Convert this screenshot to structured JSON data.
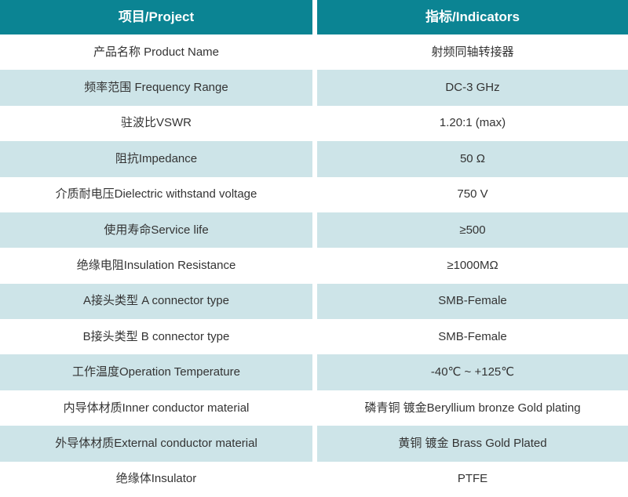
{
  "table": {
    "header": {
      "col1": "项目/Project",
      "col2": "指标/Indicators"
    },
    "rows": [
      {
        "project": "产品名称 Product Name",
        "indicator": "射频同轴转接器"
      },
      {
        "project": "频率范围 Frequency Range",
        "indicator": "DC-3 GHz"
      },
      {
        "project": "驻波比VSWR",
        "indicator": "1.20:1 (max)"
      },
      {
        "project": "阻抗Impedance",
        "indicator": "50 Ω"
      },
      {
        "project": "介质耐电压Dielectric withstand voltage",
        "indicator": "750 V"
      },
      {
        "project": "使用寿命Service life",
        "indicator": "≥500"
      },
      {
        "project": "绝缘电阻Insulation Resistance",
        "indicator": "≥1000MΩ"
      },
      {
        "project": "A接头类型 A connector type",
        "indicator": "SMB-Female"
      },
      {
        "project": "B接头类型 B connector type",
        "indicator": "SMB-Female"
      },
      {
        "project": "工作温度Operation Temperature",
        "indicator": "-40℃ ~ +125℃"
      },
      {
        "project": "内导体材质Inner conductor material",
        "indicator": "磷青铜 镀金Beryllium bronze Gold plating"
      },
      {
        "project": "外导体材质External conductor material",
        "indicator": "黄铜 镀金 Brass Gold Plated"
      },
      {
        "project": "绝缘体Insulator",
        "indicator": "PTFE"
      }
    ],
    "colors": {
      "header_bg": "#0b8493",
      "header_text": "#ffffff",
      "row_bg": "#ffffff",
      "row_alt_bg": "#cde4e8",
      "text": "#333333"
    }
  }
}
